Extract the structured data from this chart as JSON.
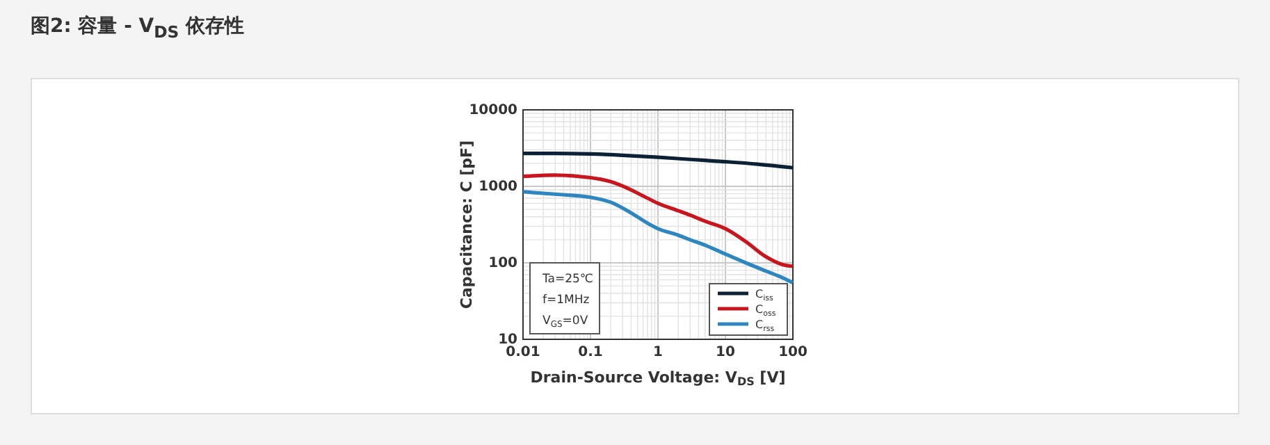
{
  "chart_data": {
    "type": "line",
    "title": "图2: 容量 - V$_{DS}$ 依存性",
    "xlabel": "Drain-Source Voltage: V$_{DS}$ [V]",
    "ylabel": "Capacitance: C [pF]",
    "annotations": [
      "Ta=25℃",
      "f=1MHz",
      "V$_{GS}$=0V"
    ],
    "log": "xy",
    "grid": true,
    "legend": "bottom right",
    "line_style": "solid",
    "marker": "none",
    "xlim": [
      0.01,
      100
    ],
    "xticks": [
      0.01,
      0.1,
      1,
      10,
      100
    ],
    "ylim": [
      10,
      10000
    ],
    "yticks": [
      10,
      100,
      1000,
      10000
    ],
    "series": [
      {
        "name": "C$_{iss}$",
        "color": "#0d2136",
        "x": [
          0.01,
          0.03,
          0.1,
          0.3,
          1,
          3,
          10,
          30,
          100
        ],
        "values": [
          2700,
          2700,
          2650,
          2550,
          2400,
          2250,
          2100,
          1950,
          1750
        ]
      },
      {
        "name": "C$_{oss}$",
        "color": "#c8161e",
        "x": [
          0.01,
          0.03,
          0.1,
          0.2,
          0.4,
          0.7,
          1,
          2,
          3,
          5,
          10,
          20,
          40,
          70,
          100
        ],
        "values": [
          1350,
          1400,
          1300,
          1150,
          900,
          700,
          600,
          480,
          420,
          350,
          280,
          190,
          120,
          95,
          90
        ]
      },
      {
        "name": "C$_{rss}$",
        "color": "#2e86c1",
        "x": [
          0.01,
          0.03,
          0.1,
          0.2,
          0.4,
          0.7,
          1,
          2,
          3,
          5,
          10,
          20,
          40,
          70,
          100
        ],
        "values": [
          850,
          790,
          720,
          620,
          450,
          330,
          280,
          230,
          200,
          170,
          130,
          100,
          78,
          64,
          55
        ]
      }
    ]
  }
}
